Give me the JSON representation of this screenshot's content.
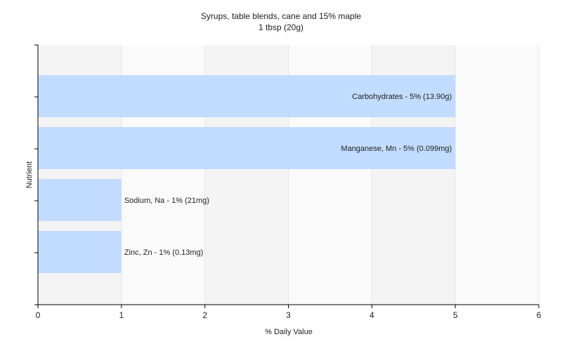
{
  "chart_data": {
    "type": "bar",
    "orientation": "horizontal",
    "title": "Syrups, table blends, cane and 15% maple",
    "subtitle": "1 tbsp (20g)",
    "xlabel": "% Daily Value",
    "ylabel": "Nutrient",
    "xlim": [
      0,
      6
    ],
    "xticks": [
      "0",
      "1",
      "2",
      "3",
      "4",
      "5",
      "6"
    ],
    "grid": true,
    "legend": "none",
    "bar_color": "#c2dcff",
    "categories": [
      "Carbohydrates",
      "Manganese, Mn",
      "Sodium, Na",
      "Zinc, Zn"
    ],
    "values": [
      5,
      5,
      1,
      1
    ],
    "labels": [
      "Carbohydrates - 5% (13.90g)",
      "Manganese, Mn - 5% (0.099mg)",
      "Sodium, Na - 1% (21mg)",
      "Zinc, Zn - 1% (0.13mg)"
    ]
  }
}
